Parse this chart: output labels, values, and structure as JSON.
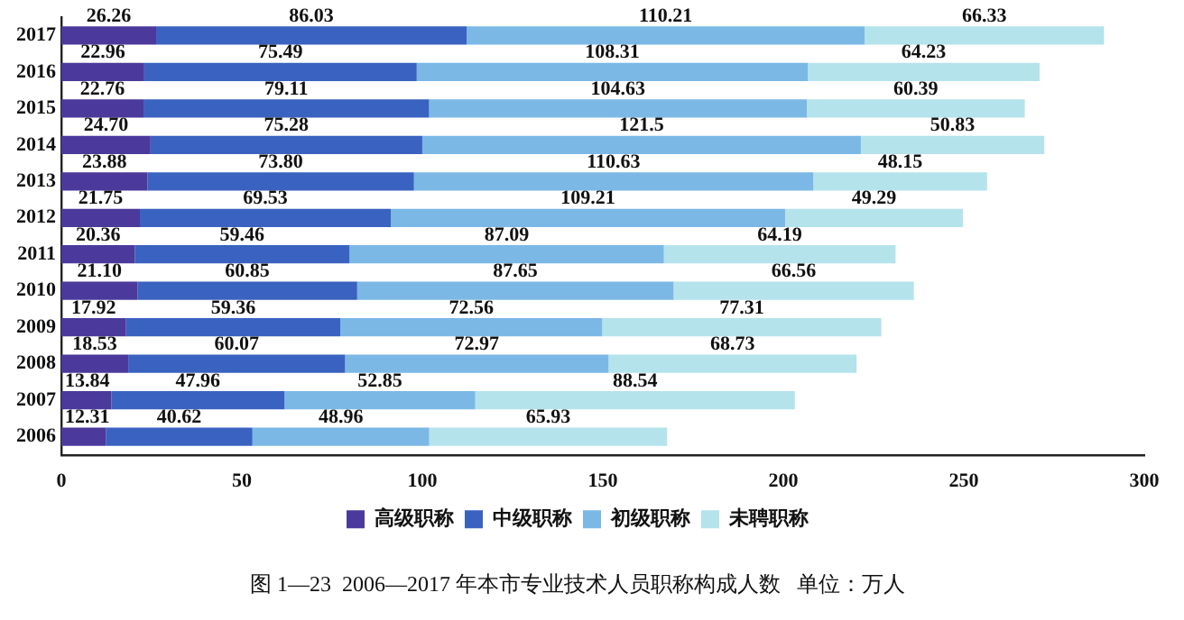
{
  "chart_data": {
    "type": "bar",
    "orientation": "horizontal",
    "stacked": true,
    "title": "图 1—23  2006—2017 年本市专业技术人员职称构成人数   单位：万人",
    "categories": [
      "2017",
      "2016",
      "2015",
      "2014",
      "2013",
      "2012",
      "2011",
      "2010",
      "2009",
      "2008",
      "2007",
      "2006"
    ],
    "series": [
      {
        "name": "高级职称",
        "color": "#4b3a9c",
        "values": [
          26.26,
          22.96,
          22.76,
          24.7,
          23.88,
          21.75,
          20.36,
          21.1,
          17.92,
          18.53,
          13.84,
          12.31
        ],
        "value_labels": [
          "26.26",
          "22.96",
          "22.76",
          "24.70",
          "23.88",
          "21.75",
          "20.36",
          "21.10",
          "17.92",
          "18.53",
          "13.84",
          "12.31"
        ]
      },
      {
        "name": "中级职称",
        "color": "#3a62c0",
        "values": [
          86.03,
          75.49,
          79.11,
          75.28,
          73.8,
          69.53,
          59.46,
          60.85,
          59.36,
          60.07,
          47.96,
          40.62
        ],
        "value_labels": [
          "86.03",
          "75.49",
          "79.11",
          "75.28",
          "73.80",
          "69.53",
          "59.46",
          "60.85",
          "59.36",
          "60.07",
          "47.96",
          "40.62"
        ]
      },
      {
        "name": "初级职称",
        "color": "#7bb8e6",
        "values": [
          110.21,
          108.31,
          104.63,
          121.5,
          110.63,
          109.21,
          87.09,
          87.65,
          72.56,
          72.97,
          52.85,
          48.96
        ],
        "value_labels": [
          "110.21",
          "108.31",
          "104.63",
          "121.5",
          "110.63",
          "109.21",
          "87.09",
          "87.65",
          "72.56",
          "72.97",
          "52.85",
          "48.96"
        ]
      },
      {
        "name": "未聘职称",
        "color": "#b4e3ec",
        "values": [
          66.33,
          64.23,
          60.39,
          50.83,
          48.15,
          49.29,
          64.19,
          66.56,
          77.31,
          68.73,
          88.54,
          65.93
        ],
        "value_labels": [
          "66.33",
          "64.23",
          "60.39",
          "50.83",
          "48.15",
          "49.29",
          "64.19",
          "66.56",
          "77.31",
          "68.73",
          "88.54",
          "65.93"
        ]
      }
    ],
    "xlim": [
      0,
      300
    ],
    "xticks": [
      0,
      50,
      100,
      150,
      200,
      250,
      300
    ],
    "grid": false,
    "legend": "bottom"
  }
}
